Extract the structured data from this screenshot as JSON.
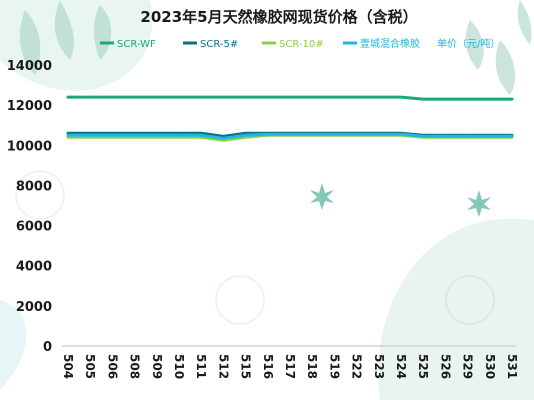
{
  "chart_data": {
    "type": "line",
    "title": "2023年5月天然橡胶网现货价格（含税）",
    "unit_label": "单价（元/吨）",
    "categories": [
      "504",
      "505",
      "506",
      "508",
      "509",
      "510",
      "511",
      "512",
      "515",
      "516",
      "517",
      "518",
      "519",
      "522",
      "523",
      "524",
      "525",
      "526",
      "529",
      "530",
      "531"
    ],
    "ylim": [
      0,
      14000
    ],
    "yticks": [
      0,
      2000,
      4000,
      6000,
      8000,
      10000,
      12000,
      14000
    ],
    "grid": false,
    "legend_position": "top",
    "series": [
      {
        "name": "SCR-WF",
        "color": "#1aa87a",
        "values": [
          12400,
          12400,
          12400,
          12400,
          12400,
          12400,
          12400,
          12400,
          12400,
          12400,
          12400,
          12400,
          12400,
          12400,
          12400,
          12400,
          12300,
          12300,
          12300,
          12300,
          12300
        ]
      },
      {
        "name": "SCR-5#",
        "color": "#0b6e8c",
        "values": [
          10600,
          10600,
          10600,
          10600,
          10600,
          10600,
          10600,
          10450,
          10600,
          10600,
          10600,
          10600,
          10600,
          10600,
          10600,
          10600,
          10500,
          10500,
          10500,
          10500,
          10500
        ]
      },
      {
        "name": "SCR-10#",
        "color": "#8cd14a",
        "values": [
          10400,
          10400,
          10400,
          10400,
          10400,
          10400,
          10400,
          10250,
          10400,
          10500,
          10500,
          10500,
          10500,
          10500,
          10500,
          10500,
          10400,
          10400,
          10400,
          10400,
          10400
        ]
      },
      {
        "name": "壹城混合橡胶",
        "color": "#22b5e0",
        "values": [
          10500,
          10500,
          10500,
          10500,
          10500,
          10500,
          10500,
          10350,
          10500,
          10550,
          10550,
          10550,
          10550,
          10550,
          10550,
          10550,
          10450,
          10450,
          10450,
          10450,
          10450
        ]
      }
    ]
  }
}
